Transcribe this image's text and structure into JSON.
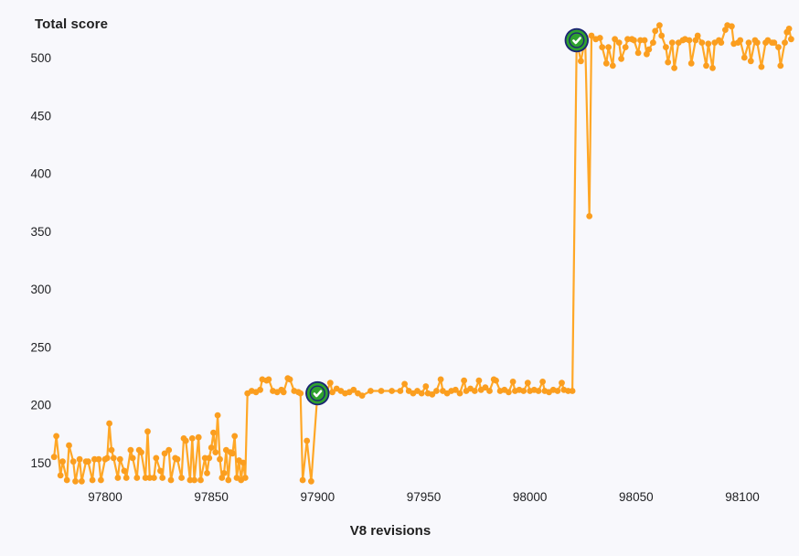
{
  "page": {
    "background_color": "#F8F8FC"
  },
  "chart_data": {
    "type": "line",
    "title": "Total score",
    "xlabel": "V8 revisions",
    "ylabel": "Total score",
    "xlim": [
      97773,
      98126
    ],
    "ylim": [
      128,
      535
    ],
    "x_ticks": [
      "97800",
      "97850",
      "97900",
      "97950",
      "98000",
      "98050",
      "98100"
    ],
    "x_tick_values": [
      97800,
      97850,
      97900,
      97950,
      98000,
      98050,
      98100
    ],
    "y_ticks": [
      "150",
      "200",
      "250",
      "300",
      "350",
      "400",
      "450",
      "500"
    ],
    "y_tick_values": [
      150,
      200,
      250,
      300,
      350,
      400,
      450,
      500
    ],
    "grid": false,
    "legend": false,
    "colors": {
      "line": "#FFA726",
      "point": "#FB9E1F",
      "marker_navy": "#1C2674",
      "marker_green": "#2FA12F",
      "marker_check": "#FFFFFF",
      "tick_text": "#202124"
    },
    "markers": [
      {
        "name": "confirmed-check-marker",
        "x": 97900,
        "y": 210
      },
      {
        "name": "confirmed-check-marker",
        "x": 98022,
        "y": 515
      }
    ],
    "series": [
      {
        "name": "Total score",
        "color": "#FFA726",
        "points": [
          [
            97776,
            155
          ],
          [
            97777,
            173
          ],
          [
            97779,
            139
          ],
          [
            97780,
            151
          ],
          [
            97782,
            135
          ],
          [
            97783,
            165
          ],
          [
            97785,
            151
          ],
          [
            97786,
            134
          ],
          [
            97788,
            153
          ],
          [
            97789,
            134
          ],
          [
            97791,
            151
          ],
          [
            97792,
            151
          ],
          [
            97794,
            135
          ],
          [
            97795,
            153
          ],
          [
            97797,
            153
          ],
          [
            97798,
            135
          ],
          [
            97800,
            153
          ],
          [
            97801,
            154
          ],
          [
            97802,
            184
          ],
          [
            97803,
            161
          ],
          [
            97804,
            154
          ],
          [
            97806,
            137
          ],
          [
            97807,
            153
          ],
          [
            97809,
            143
          ],
          [
            97810,
            137
          ],
          [
            97812,
            161
          ],
          [
            97813,
            154
          ],
          [
            97815,
            137
          ],
          [
            97816,
            161
          ],
          [
            97817,
            159
          ],
          [
            97819,
            137
          ],
          [
            97820,
            177
          ],
          [
            97821,
            137
          ],
          [
            97823,
            137
          ],
          [
            97824,
            154
          ],
          [
            97826,
            143
          ],
          [
            97827,
            137
          ],
          [
            97828,
            158
          ],
          [
            97830,
            161
          ],
          [
            97831,
            135
          ],
          [
            97833,
            154
          ],
          [
            97834,
            153
          ],
          [
            97836,
            137
          ],
          [
            97837,
            171
          ],
          [
            97838,
            169
          ],
          [
            97840,
            135
          ],
          [
            97841,
            171
          ],
          [
            97842,
            135
          ],
          [
            97844,
            172
          ],
          [
            97845,
            135
          ],
          [
            97847,
            154
          ],
          [
            97848,
            141
          ],
          [
            97849,
            154
          ],
          [
            97850,
            163
          ],
          [
            97851,
            176
          ],
          [
            97852,
            159
          ],
          [
            97853,
            191
          ],
          [
            97854,
            153
          ],
          [
            97855,
            137
          ],
          [
            97856,
            141
          ],
          [
            97857,
            161
          ],
          [
            97858,
            135
          ],
          [
            97859,
            159
          ],
          [
            97860,
            158
          ],
          [
            97861,
            173
          ],
          [
            97862,
            137
          ],
          [
            97863,
            152
          ],
          [
            97864,
            135
          ],
          [
            97865,
            150
          ],
          [
            97866,
            137
          ],
          [
            97867,
            210
          ],
          [
            97869,
            212
          ],
          [
            97871,
            211
          ],
          [
            97873,
            213
          ],
          [
            97874,
            222
          ],
          [
            97876,
            221
          ],
          [
            97877,
            222
          ],
          [
            97879,
            212
          ],
          [
            97881,
            211
          ],
          [
            97883,
            213
          ],
          [
            97884,
            211
          ],
          [
            97886,
            223
          ],
          [
            97887,
            222
          ],
          [
            97889,
            212
          ],
          [
            97891,
            211
          ],
          [
            97892,
            210
          ],
          [
            97893,
            135
          ],
          [
            97895,
            169
          ],
          [
            97897,
            134
          ],
          [
            97900,
            210
          ],
          [
            97902,
            213
          ],
          [
            97904,
            210
          ],
          [
            97906,
            219
          ],
          [
            97907,
            211
          ],
          [
            97909,
            214
          ],
          [
            97911,
            212
          ],
          [
            97913,
            210
          ],
          [
            97915,
            211
          ],
          [
            97917,
            213
          ],
          [
            97919,
            210
          ],
          [
            97921,
            208
          ],
          [
            97925,
            212
          ],
          [
            97930,
            212
          ],
          [
            97935,
            212
          ],
          [
            97939,
            212
          ],
          [
            97941,
            218
          ],
          [
            97943,
            212
          ],
          [
            97945,
            210
          ],
          [
            97947,
            212
          ],
          [
            97949,
            210
          ],
          [
            97951,
            216
          ],
          [
            97952,
            210
          ],
          [
            97954,
            209
          ],
          [
            97956,
            212
          ],
          [
            97958,
            222
          ],
          [
            97959,
            212
          ],
          [
            97961,
            210
          ],
          [
            97963,
            212
          ],
          [
            97965,
            213
          ],
          [
            97967,
            210
          ],
          [
            97969,
            221
          ],
          [
            97970,
            212
          ],
          [
            97972,
            214
          ],
          [
            97974,
            212
          ],
          [
            97976,
            221
          ],
          [
            97977,
            213
          ],
          [
            97979,
            215
          ],
          [
            97981,
            212
          ],
          [
            97983,
            222
          ],
          [
            97984,
            221
          ],
          [
            97986,
            212
          ],
          [
            97988,
            213
          ],
          [
            97990,
            211
          ],
          [
            97992,
            220
          ],
          [
            97993,
            212
          ],
          [
            97995,
            213
          ],
          [
            97997,
            212
          ],
          [
            97999,
            219
          ],
          [
            98000,
            212
          ],
          [
            98002,
            213
          ],
          [
            98004,
            212
          ],
          [
            98006,
            220
          ],
          [
            98007,
            212
          ],
          [
            98009,
            211
          ],
          [
            98011,
            213
          ],
          [
            98013,
            212
          ],
          [
            98015,
            219
          ],
          [
            98016,
            213
          ],
          [
            98018,
            212
          ],
          [
            98020,
            212
          ],
          [
            98022,
            515
          ],
          [
            98024,
            497
          ],
          [
            98026,
            516
          ],
          [
            98028,
            363
          ],
          [
            98029,
            519
          ],
          [
            98031,
            516
          ],
          [
            98033,
            517
          ],
          [
            98034,
            509
          ],
          [
            98036,
            495
          ],
          [
            98037,
            509
          ],
          [
            98039,
            493
          ],
          [
            98040,
            516
          ],
          [
            98042,
            513
          ],
          [
            98043,
            499
          ],
          [
            98045,
            509
          ],
          [
            98046,
            516
          ],
          [
            98048,
            516
          ],
          [
            98049,
            515
          ],
          [
            98051,
            504
          ],
          [
            98052,
            515
          ],
          [
            98054,
            515
          ],
          [
            98055,
            503
          ],
          [
            98056,
            507
          ],
          [
            98058,
            513
          ],
          [
            98059,
            523
          ],
          [
            98061,
            528
          ],
          [
            98062,
            519
          ],
          [
            98064,
            509
          ],
          [
            98065,
            496
          ],
          [
            98067,
            513
          ],
          [
            98068,
            491
          ],
          [
            98070,
            513
          ],
          [
            98072,
            515
          ],
          [
            98073,
            516
          ],
          [
            98075,
            515
          ],
          [
            98076,
            495
          ],
          [
            98078,
            515
          ],
          [
            98079,
            519
          ],
          [
            98081,
            513
          ],
          [
            98083,
            493
          ],
          [
            98084,
            512
          ],
          [
            98086,
            491
          ],
          [
            98087,
            513
          ],
          [
            98089,
            515
          ],
          [
            98090,
            513
          ],
          [
            98092,
            524
          ],
          [
            98093,
            528
          ],
          [
            98095,
            527
          ],
          [
            98096,
            512
          ],
          [
            98098,
            513
          ],
          [
            98099,
            515
          ],
          [
            98101,
            500
          ],
          [
            98103,
            513
          ],
          [
            98104,
            497
          ],
          [
            98106,
            515
          ],
          [
            98107,
            513
          ],
          [
            98109,
            492
          ],
          [
            98111,
            513
          ],
          [
            98112,
            515
          ],
          [
            98114,
            513
          ],
          [
            98115,
            513
          ],
          [
            98117,
            509
          ],
          [
            98118,
            493
          ],
          [
            98120,
            513
          ],
          [
            98121,
            522
          ],
          [
            98122,
            525
          ],
          [
            98123,
            516
          ]
        ]
      }
    ]
  }
}
